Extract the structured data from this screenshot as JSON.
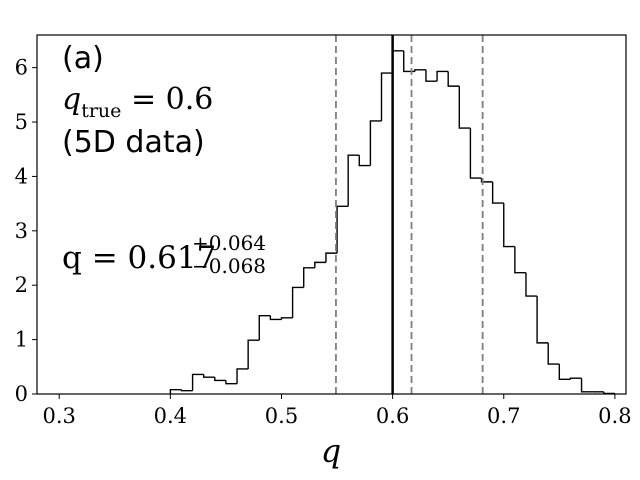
{
  "chart_data": {
    "type": "histogram",
    "xlabel": "q",
    "ylabel": "",
    "xlim": [
      0.28,
      0.81
    ],
    "ylim": [
      0,
      6.6
    ],
    "xticks": [
      0.3,
      0.4,
      0.5,
      0.6,
      0.7,
      0.8
    ],
    "xtick_labels": [
      "0.3",
      "0.4",
      "0.5",
      "0.6",
      "0.7",
      "0.8"
    ],
    "yticks": [
      0,
      1,
      2,
      3,
      4,
      5,
      6
    ],
    "ytick_labels": [
      "0",
      "1",
      "2",
      "3",
      "4",
      "5",
      "6"
    ],
    "bin_width": 0.01,
    "bins": [
      {
        "x0": 0.4,
        "y": 0.08
      },
      {
        "x0": 0.41,
        "y": 0.06
      },
      {
        "x0": 0.42,
        "y": 0.36
      },
      {
        "x0": 0.43,
        "y": 0.31
      },
      {
        "x0": 0.44,
        "y": 0.25
      },
      {
        "x0": 0.45,
        "y": 0.19
      },
      {
        "x0": 0.46,
        "y": 0.46
      },
      {
        "x0": 0.47,
        "y": 0.99
      },
      {
        "x0": 0.48,
        "y": 1.44
      },
      {
        "x0": 0.49,
        "y": 1.37
      },
      {
        "x0": 0.5,
        "y": 1.4
      },
      {
        "x0": 0.51,
        "y": 1.96
      },
      {
        "x0": 0.52,
        "y": 2.32
      },
      {
        "x0": 0.53,
        "y": 2.42
      },
      {
        "x0": 0.54,
        "y": 2.59
      },
      {
        "x0": 0.55,
        "y": 3.45
      },
      {
        "x0": 0.56,
        "y": 4.39
      },
      {
        "x0": 0.57,
        "y": 4.2
      },
      {
        "x0": 0.58,
        "y": 5.02
      },
      {
        "x0": 0.59,
        "y": 5.9
      },
      {
        "x0": 0.6,
        "y": 6.31
      },
      {
        "x0": 0.61,
        "y": 5.93
      },
      {
        "x0": 0.62,
        "y": 5.96
      },
      {
        "x0": 0.63,
        "y": 5.75
      },
      {
        "x0": 0.64,
        "y": 5.93
      },
      {
        "x0": 0.65,
        "y": 5.66
      },
      {
        "x0": 0.66,
        "y": 4.89
      },
      {
        "x0": 0.67,
        "y": 3.97
      },
      {
        "x0": 0.68,
        "y": 3.9
      },
      {
        "x0": 0.69,
        "y": 3.51
      },
      {
        "x0": 0.7,
        "y": 2.71
      },
      {
        "x0": 0.71,
        "y": 2.23
      },
      {
        "x0": 0.72,
        "y": 1.8
      },
      {
        "x0": 0.73,
        "y": 0.94
      },
      {
        "x0": 0.74,
        "y": 0.55
      },
      {
        "x0": 0.75,
        "y": 0.27
      },
      {
        "x0": 0.76,
        "y": 0.29
      },
      {
        "x0": 0.77,
        "y": 0.04
      },
      {
        "x0": 0.78,
        "y": 0.04
      },
      {
        "x0": 0.79,
        "y": 0.01
      }
    ],
    "vlines": [
      {
        "x": 0.549,
        "style": "dashed",
        "color": "#7f7f7f"
      },
      {
        "x": 0.617,
        "style": "dashed",
        "color": "#7f7f7f"
      },
      {
        "x": 0.681,
        "style": "dashed",
        "color": "#7f7f7f"
      },
      {
        "x": 0.6,
        "style": "solid",
        "color": "#000000"
      }
    ],
    "annotations": {
      "panel_label": "(a)",
      "q_true_symbol": "q",
      "q_true_subscript": "true",
      "q_true_rest": " = 0.6",
      "data_note": "(5D data)",
      "q_estimate_main": "q = 0.617",
      "q_estimate_plus": "+0.064",
      "q_estimate_minus": "−0.068"
    },
    "grid": false,
    "colors": {
      "histogram": "#000000",
      "truth": "#000000",
      "quantiles": "#7f7f7f"
    }
  }
}
